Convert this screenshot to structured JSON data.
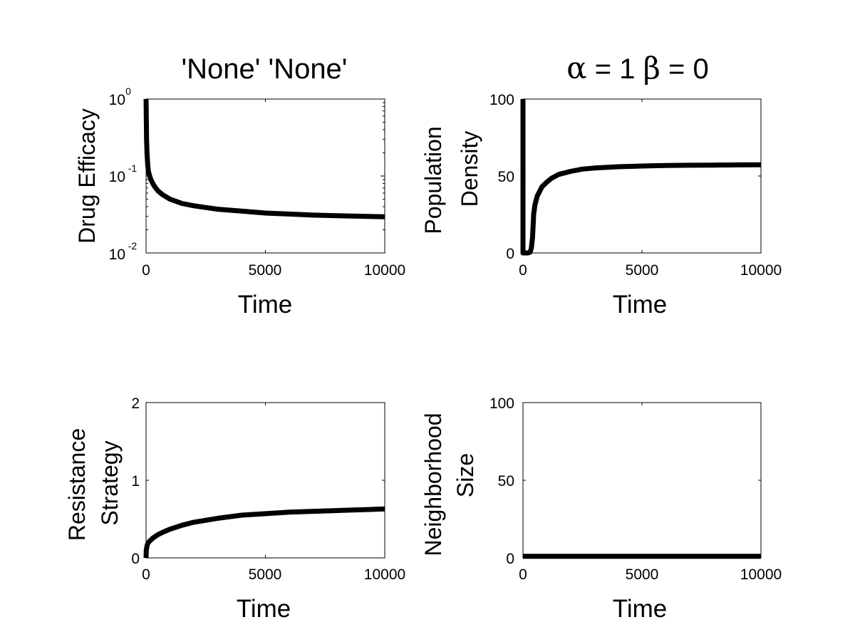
{
  "chart_data": [
    {
      "type": "line",
      "title": "'None' 'None'",
      "xlabel": "Time",
      "ylabel": "Drug Efficacy",
      "xlim": [
        0,
        10000
      ],
      "ylim": [
        0.01,
        1
      ],
      "yscale": "log",
      "xticks": [
        "0",
        "5000",
        "10000"
      ],
      "yticks": [
        {
          "base": "10",
          "exp": "0"
        },
        {
          "base": "10",
          "exp": "-1"
        },
        {
          "base": "10",
          "exp": "-2"
        }
      ],
      "grid": false,
      "x": [
        0,
        10,
        20,
        40,
        70,
        100,
        150,
        200,
        300,
        400,
        500,
        700,
        1000,
        1500,
        2000,
        3000,
        4000,
        5000,
        6000,
        7000,
        8000,
        9000,
        10000
      ],
      "y": [
        1.0,
        0.6,
        0.3,
        0.2,
        0.14,
        0.115,
        0.1,
        0.09,
        0.078,
        0.07,
        0.064,
        0.057,
        0.05,
        0.044,
        0.041,
        0.037,
        0.035,
        0.033,
        0.032,
        0.031,
        0.0305,
        0.03,
        0.0295
      ]
    },
    {
      "type": "line",
      "title": "α = 1 β = 0",
      "title_parts": {
        "alpha": "α",
        "alpha_eq": " = 1 ",
        "beta": "β",
        "beta_eq": " = 0"
      },
      "xlabel": "Time",
      "ylabel": [
        "Population",
        "Density"
      ],
      "xlim": [
        0,
        10000
      ],
      "ylim": [
        0,
        100
      ],
      "xticks": [
        "0",
        "5000",
        "10000"
      ],
      "yticks": [
        "100",
        "50",
        "0"
      ],
      "grid": false,
      "x": [
        0,
        0,
        20,
        50,
        100,
        200,
        300,
        350,
        400,
        450,
        500,
        600,
        700,
        800,
        1000,
        1200,
        1500,
        2000,
        2500,
        3000,
        4000,
        5000,
        6000,
        7000,
        8000,
        9000,
        10000
      ],
      "y": [
        100,
        0,
        0,
        0,
        0,
        0,
        0.5,
        3,
        10,
        25,
        31,
        37,
        40,
        43,
        46,
        48.5,
        51,
        53,
        54.5,
        55.2,
        56,
        56.5,
        56.8,
        57,
        57.1,
        57.2,
        57.3
      ]
    },
    {
      "type": "line",
      "xlabel": "Time",
      "ylabel": [
        "Resistance",
        "Strategy"
      ],
      "xlim": [
        0,
        10000
      ],
      "ylim": [
        0,
        2
      ],
      "xticks": [
        "0",
        "5000",
        "10000"
      ],
      "yticks": [
        "2",
        "1",
        "0"
      ],
      "grid": false,
      "x": [
        0,
        10,
        50,
        100,
        200,
        300,
        500,
        700,
        1000,
        1500,
        2000,
        3000,
        4000,
        5000,
        6000,
        7000,
        8000,
        9000,
        10000
      ],
      "y": [
        0,
        0.1,
        0.17,
        0.2,
        0.23,
        0.26,
        0.3,
        0.33,
        0.37,
        0.42,
        0.46,
        0.51,
        0.55,
        0.57,
        0.59,
        0.6,
        0.61,
        0.62,
        0.63
      ]
    },
    {
      "type": "line",
      "xlabel": "Time",
      "ylabel": [
        "Neighborhood",
        "Size"
      ],
      "xlim": [
        0,
        10000
      ],
      "ylim": [
        0,
        100
      ],
      "xticks": [
        "0",
        "5000",
        "10000"
      ],
      "yticks": [
        "100",
        "50",
        "0"
      ],
      "grid": false,
      "x": [
        0,
        10000
      ],
      "y": [
        1,
        1
      ]
    }
  ]
}
